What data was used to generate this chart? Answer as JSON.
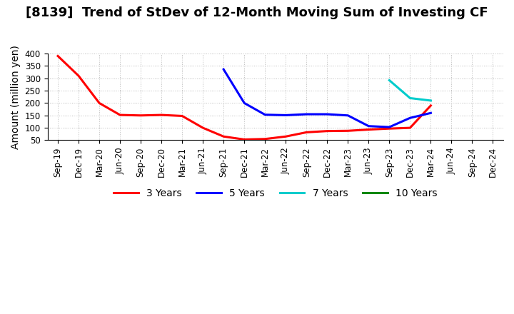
{
  "title": "[8139]  Trend of StDev of 12-Month Moving Sum of Investing CF",
  "ylabel": "Amount (million yen)",
  "ylim": [
    50,
    400
  ],
  "yticks": [
    50,
    100,
    150,
    200,
    250,
    300,
    350,
    400
  ],
  "background_color": "#ffffff",
  "grid_color": "#aaaaaa",
  "series": [
    {
      "label": "3 Years",
      "color": "#ff0000",
      "x": [
        "Sep-19",
        "Dec-19",
        "Mar-20",
        "Jun-20",
        "Sep-20",
        "Dec-20",
        "Mar-21",
        "Jun-21",
        "Sep-21",
        "Dec-21",
        "Mar-22",
        "Jun-22",
        "Sep-22",
        "Dec-22",
        "Mar-23",
        "Jun-23",
        "Sep-23",
        "Dec-23",
        "Mar-24"
      ],
      "y": [
        390,
        310,
        200,
        152,
        150,
        152,
        148,
        100,
        65,
        53,
        55,
        65,
        82,
        87,
        88,
        93,
        97,
        100,
        190
      ]
    },
    {
      "label": "5 Years",
      "color": "#0000ff",
      "x": [
        "Sep-21",
        "Dec-21",
        "Mar-22",
        "Jun-22",
        "Sep-22",
        "Dec-22",
        "Mar-23",
        "Jun-23",
        "Sep-23",
        "Dec-23",
        "Mar-24"
      ],
      "y": [
        336,
        200,
        153,
        151,
        155,
        155,
        150,
        107,
        103,
        140,
        160
      ]
    },
    {
      "label": "7 Years",
      "color": "#00cccc",
      "x": [
        "Sep-23",
        "Dec-23",
        "Mar-24"
      ],
      "y": [
        292,
        220,
        210
      ]
    },
    {
      "label": "10 Years",
      "color": "#008800",
      "x": [],
      "y": []
    }
  ],
  "x_labels": [
    "Sep-19",
    "Dec-19",
    "Mar-20",
    "Jun-20",
    "Sep-20",
    "Dec-20",
    "Mar-21",
    "Jun-21",
    "Sep-21",
    "Dec-21",
    "Mar-22",
    "Jun-22",
    "Sep-22",
    "Dec-22",
    "Mar-23",
    "Jun-23",
    "Sep-23",
    "Dec-23",
    "Mar-24",
    "Jun-24",
    "Sep-24",
    "Dec-24"
  ],
  "title_fontsize": 13,
  "label_fontsize": 10,
  "tick_fontsize": 8.5,
  "legend_fontsize": 10
}
